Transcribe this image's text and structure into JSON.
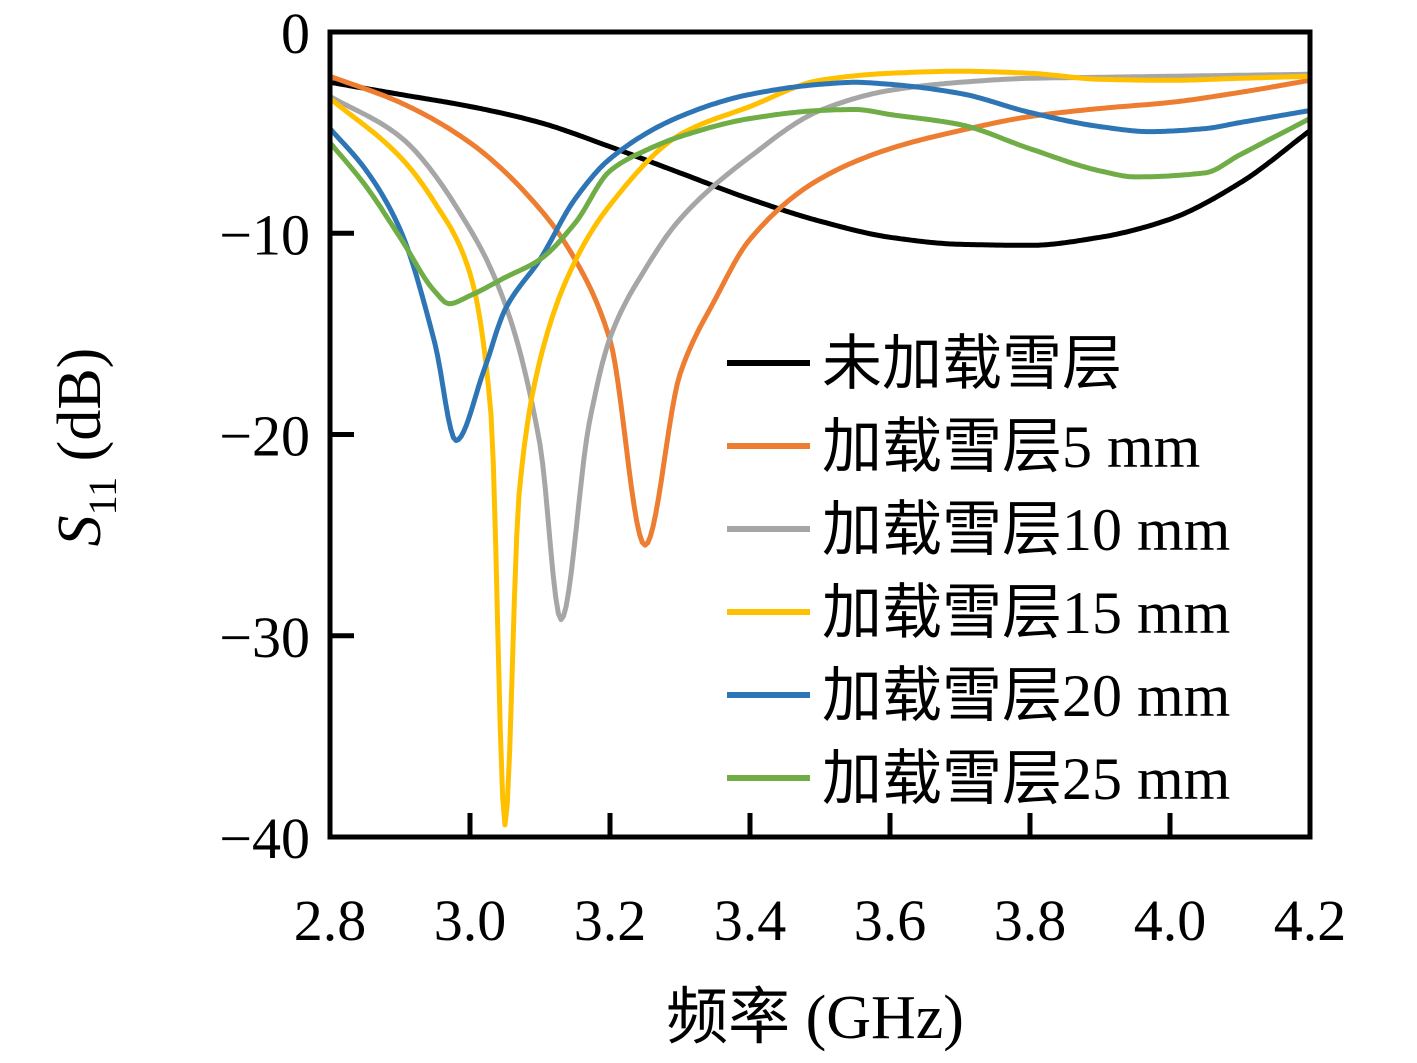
{
  "chart_data": {
    "type": "line",
    "title": "",
    "xlabel": "频率 (GHz)",
    "ylabel": "S11 (dB)",
    "ylabel_parts": {
      "symbol": "S",
      "subscript": "11",
      "unit": " (dB)"
    },
    "xlim": [
      2.8,
      4.2
    ],
    "ylim": [
      -40,
      0
    ],
    "x_ticks": [
      2.8,
      3.0,
      3.2,
      3.4,
      3.6,
      3.8,
      4.0,
      4.2
    ],
    "x_tick_marks": [
      3.0,
      3.2,
      3.4,
      3.6,
      3.8,
      4.0
    ],
    "y_ticks": [
      0,
      -10,
      -20,
      -30,
      -40
    ],
    "y_tick_marks": [
      -10,
      -20,
      -30
    ],
    "grid": false,
    "legend_position": "inside-right-middle",
    "axis_color": "#000000",
    "background": "#ffffff",
    "series": [
      {
        "name": "未加载雪层",
        "color": "#000000",
        "points": [
          [
            2.8,
            -2.5
          ],
          [
            2.9,
            -3.1
          ],
          [
            3.0,
            -3.7
          ],
          [
            3.1,
            -4.5
          ],
          [
            3.2,
            -5.7
          ],
          [
            3.3,
            -7.0
          ],
          [
            3.4,
            -8.3
          ],
          [
            3.5,
            -9.4
          ],
          [
            3.6,
            -10.2
          ],
          [
            3.7,
            -10.55
          ],
          [
            3.8,
            -10.6
          ],
          [
            3.9,
            -10.2
          ],
          [
            4.0,
            -9.3
          ],
          [
            4.1,
            -7.5
          ],
          [
            4.2,
            -4.9
          ]
        ]
      },
      {
        "name": "加载雪层5 mm",
        "color": "#ED7D31",
        "points": [
          [
            2.8,
            -2.2
          ],
          [
            2.9,
            -3.5
          ],
          [
            3.0,
            -5.5
          ],
          [
            3.1,
            -8.8
          ],
          [
            3.15,
            -11.3
          ],
          [
            3.2,
            -15.3
          ],
          [
            3.25,
            -25.5
          ],
          [
            3.3,
            -17.0
          ],
          [
            3.35,
            -13.3
          ],
          [
            3.4,
            -10.3
          ],
          [
            3.5,
            -7.3
          ],
          [
            3.6,
            -5.8
          ],
          [
            3.7,
            -4.9
          ],
          [
            3.8,
            -4.2
          ],
          [
            3.9,
            -3.8
          ],
          [
            4.0,
            -3.5
          ],
          [
            4.1,
            -3.0
          ],
          [
            4.2,
            -2.4
          ]
        ]
      },
      {
        "name": "加载雪层10 mm",
        "color": "#A6A6A6",
        "points": [
          [
            2.8,
            -3.2
          ],
          [
            2.9,
            -5.2
          ],
          [
            3.0,
            -9.8
          ],
          [
            3.05,
            -13.5
          ],
          [
            3.1,
            -20.5
          ],
          [
            3.13,
            -29.2
          ],
          [
            3.17,
            -19.5
          ],
          [
            3.2,
            -15.2
          ],
          [
            3.25,
            -11.8
          ],
          [
            3.3,
            -9.3
          ],
          [
            3.4,
            -6.2
          ],
          [
            3.5,
            -3.9
          ],
          [
            3.6,
            -2.9
          ],
          [
            3.7,
            -2.5
          ],
          [
            3.8,
            -2.3
          ],
          [
            3.9,
            -2.25
          ],
          [
            4.0,
            -2.2
          ],
          [
            4.1,
            -2.15
          ],
          [
            4.2,
            -2.1
          ]
        ]
      },
      {
        "name": "加载雪层15 mm",
        "color": "#FFC000",
        "points": [
          [
            2.8,
            -3.3
          ],
          [
            2.9,
            -6.2
          ],
          [
            2.95,
            -8.5
          ],
          [
            3.0,
            -12.0
          ],
          [
            3.03,
            -19.0
          ],
          [
            3.05,
            -39.4
          ],
          [
            3.07,
            -23.0
          ],
          [
            3.1,
            -16.3
          ],
          [
            3.15,
            -11.4
          ],
          [
            3.2,
            -8.6
          ],
          [
            3.3,
            -5.1
          ],
          [
            3.4,
            -3.7
          ],
          [
            3.5,
            -2.4
          ],
          [
            3.6,
            -2.05
          ],
          [
            3.7,
            -1.95
          ],
          [
            3.8,
            -2.05
          ],
          [
            3.9,
            -2.35
          ],
          [
            4.0,
            -2.4
          ],
          [
            4.1,
            -2.3
          ],
          [
            4.2,
            -2.2
          ]
        ]
      },
      {
        "name": "加载雪层20 mm",
        "color": "#2E75B6",
        "points": [
          [
            2.8,
            -4.8
          ],
          [
            2.85,
            -6.8
          ],
          [
            2.9,
            -9.8
          ],
          [
            2.95,
            -15.5
          ],
          [
            2.98,
            -20.3
          ],
          [
            3.02,
            -16.8
          ],
          [
            3.05,
            -13.8
          ],
          [
            3.1,
            -11.3
          ],
          [
            3.15,
            -8.3
          ],
          [
            3.2,
            -6.3
          ],
          [
            3.3,
            -4.2
          ],
          [
            3.4,
            -3.1
          ],
          [
            3.5,
            -2.6
          ],
          [
            3.55,
            -2.5
          ],
          [
            3.6,
            -2.6
          ],
          [
            3.7,
            -3.05
          ],
          [
            3.8,
            -4.0
          ],
          [
            3.9,
            -4.7
          ],
          [
            3.97,
            -4.95
          ],
          [
            4.05,
            -4.8
          ],
          [
            4.1,
            -4.5
          ],
          [
            4.2,
            -3.9
          ]
        ]
      },
      {
        "name": "加载雪层25 mm",
        "color": "#70AD47",
        "points": [
          [
            2.8,
            -5.5
          ],
          [
            2.85,
            -7.6
          ],
          [
            2.9,
            -10.2
          ],
          [
            2.95,
            -12.9
          ],
          [
            2.97,
            -13.5
          ],
          [
            3.0,
            -13.1
          ],
          [
            3.05,
            -12.2
          ],
          [
            3.1,
            -11.3
          ],
          [
            3.15,
            -9.5
          ],
          [
            3.2,
            -6.9
          ],
          [
            3.25,
            -5.9
          ],
          [
            3.3,
            -5.2
          ],
          [
            3.4,
            -4.3
          ],
          [
            3.5,
            -3.9
          ],
          [
            3.55,
            -3.85
          ],
          [
            3.6,
            -4.1
          ],
          [
            3.7,
            -4.6
          ],
          [
            3.8,
            -5.8
          ],
          [
            3.9,
            -6.9
          ],
          [
            3.95,
            -7.2
          ],
          [
            4.05,
            -7.0
          ],
          [
            4.1,
            -6.1
          ],
          [
            4.2,
            -4.3
          ]
        ]
      }
    ]
  }
}
